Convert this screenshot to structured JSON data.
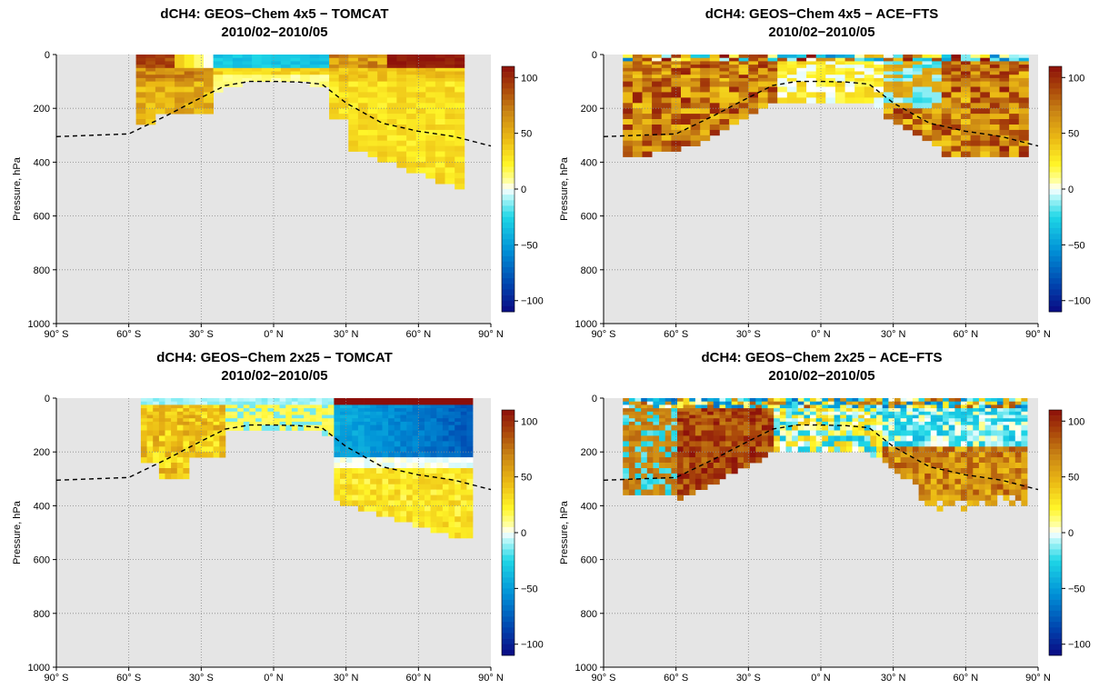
{
  "chart_data": [
    {
      "type": "heatmap",
      "title_line1": "dCH4: GEOS−Chem 4x5 − TOMCAT",
      "title_line2": "2010/02−2010/05",
      "ylabel": "Pressure, hPa",
      "xlim": [
        -90,
        90
      ],
      "ylim": [
        1000,
        0
      ],
      "y_inverted": true,
      "grid": true,
      "xticks": [
        "90° S",
        "60° S",
        "30° S",
        "0° N",
        "30° N",
        "60° N",
        "90° N"
      ],
      "yticks": [
        "0",
        "200",
        "400",
        "600",
        "800",
        "1000"
      ],
      "colorbar_ticks": [
        "100",
        "50",
        "0",
        "−50",
        "−100"
      ],
      "colorbar_range": [
        -110,
        110
      ],
      "lat_step": 4,
      "lat_range": [
        -57,
        77
      ],
      "approx_layers": [
        {
          "p": [
            20,
            55
          ],
          "lat": [
            -57,
            77
          ],
          "values": "upper band: ≈80 near 55°S–40°S and north of 30°N (over 100 on its north edge), −20 to −40 over the equator"
        },
        {
          "p": [
            55,
            250
          ],
          "lat": [
            -57,
            -25
          ],
          "values": "50 to 80"
        },
        {
          "p": [
            120,
            480
          ],
          "lat": [
            25,
            77
          ],
          "values": "15 to 45"
        }
      ],
      "tropopause_line": {
        "lat": [
          -90,
          -60,
          -45,
          -30,
          -20,
          -10,
          0,
          10,
          20,
          30,
          45,
          60,
          75,
          90
        ],
        "pressure": [
          305,
          295,
          230,
          160,
          115,
          100,
          100,
          102,
          110,
          180,
          255,
          285,
          305,
          340
        ]
      }
    },
    {
      "type": "heatmap",
      "title_line1": "dCH4: GEOS−Chem 4x5 − ACE−FTS",
      "title_line2": "2010/02−2010/05",
      "ylabel": "Pressure, hPa",
      "xlim": [
        -90,
        90
      ],
      "ylim": [
        1000,
        0
      ],
      "y_inverted": true,
      "grid": true,
      "xticks": [
        "90° S",
        "60° S",
        "30° S",
        "0° N",
        "30° N",
        "60° N",
        "90° N"
      ],
      "yticks": [
        "0",
        "200",
        "400",
        "600",
        "800",
        "1000"
      ],
      "colorbar_ticks": [
        "100",
        "50",
        "0",
        "−50",
        "−100"
      ],
      "colorbar_range": [
        -110,
        110
      ],
      "lat_step": 4,
      "lat_range": [
        -82,
        86
      ],
      "approx_layers": [
        {
          "p": [
            0,
            25
          ],
          "lat": [
            -82,
            86
          ],
          "values": "mixed −80 to +100 near the top"
        },
        {
          "p": [
            25,
            380
          ],
          "lat": [
            -82,
            -60
          ],
          "values": "40 to 90"
        },
        {
          "p": [
            25,
            200
          ],
          "lat": [
            -60,
            -20
          ],
          "values": "60 to 110"
        },
        {
          "p": [
            25,
            100
          ],
          "lat": [
            -20,
            25
          ],
          "values": "−10 to 60"
        },
        {
          "p": [
            25,
            380
          ],
          "lat": [
            25,
            86
          ],
          "values": "−30 to 110"
        }
      ],
      "tropopause_line": {
        "lat": [
          -90,
          -60,
          -45,
          -30,
          -20,
          -10,
          0,
          10,
          20,
          30,
          45,
          60,
          75,
          90
        ],
        "pressure": [
          305,
          295,
          230,
          160,
          115,
          100,
          100,
          102,
          110,
          180,
          255,
          285,
          305,
          340
        ]
      }
    },
    {
      "type": "heatmap",
      "title_line1": "dCH4: GEOS−Chem 2x25 − TOMCAT",
      "title_line2": "2010/02−2010/05",
      "ylabel": "Pressure, hPa",
      "xlim": [
        -90,
        90
      ],
      "ylim": [
        1000,
        0
      ],
      "y_inverted": true,
      "grid": true,
      "xticks": [
        "90° S",
        "60° S",
        "30° S",
        "0° N",
        "30° N",
        "60° N",
        "90° N"
      ],
      "yticks": [
        "0",
        "200",
        "400",
        "600",
        "800",
        "1000"
      ],
      "colorbar_ticks": [
        "100",
        "50",
        "0",
        "−50",
        "−100"
      ],
      "colorbar_range": [
        -110,
        110
      ],
      "lat_step": 2.5,
      "lat_range": [
        -55,
        83
      ],
      "approx_layers": [
        {
          "p": [
            0,
            30
          ],
          "lat": [
            -55,
            83
          ],
          "values": "−10 near 55°S–20°N, over 100 north of 30°N"
        },
        {
          "p": [
            30,
            300
          ],
          "lat": [
            -55,
            -20
          ],
          "values": "15 to 60"
        },
        {
          "p": [
            60,
            230
          ],
          "lat": [
            25,
            83
          ],
          "values": "−70 to −30"
        },
        {
          "p": [
            240,
            510
          ],
          "lat": [
            27,
            78
          ],
          "values": "15 to 40"
        }
      ],
      "tropopause_line": {
        "lat": [
          -90,
          -60,
          -45,
          -30,
          -20,
          -10,
          0,
          10,
          20,
          30,
          45,
          60,
          75,
          90
        ],
        "pressure": [
          305,
          295,
          230,
          160,
          115,
          100,
          100,
          102,
          110,
          180,
          255,
          285,
          305,
          340
        ]
      }
    },
    {
      "type": "heatmap",
      "title_line1": "dCH4: GEOS−Chem 2x25 − ACE−FTS",
      "title_line2": "2010/02−2010/05",
      "ylabel": "Pressure, hPa",
      "xlim": [
        -90,
        90
      ],
      "ylim": [
        1000,
        0
      ],
      "y_inverted": true,
      "grid": true,
      "xticks": [
        "90° S",
        "60° S",
        "30° S",
        "0° N",
        "30° N",
        "60° N",
        "90° N"
      ],
      "yticks": [
        "0",
        "200",
        "400",
        "600",
        "800",
        "1000"
      ],
      "colorbar_ticks": [
        "100",
        "50",
        "0",
        "−50",
        "−100"
      ],
      "colorbar_range": [
        -110,
        110
      ],
      "lat_step": 2.5,
      "lat_range": [
        -82,
        86
      ],
      "approx_layers": [
        {
          "p": [
            0,
            40
          ],
          "lat": [
            -82,
            86
          ],
          "values": "mixed −80 to +60 near the top"
        },
        {
          "p": [
            40,
            350
          ],
          "lat": [
            -82,
            -60
          ],
          "values": "−40 to 80"
        },
        {
          "p": [
            40,
            130
          ],
          "lat": [
            -60,
            -20
          ],
          "values": "70 to 110"
        },
        {
          "p": [
            40,
            110
          ],
          "lat": [
            -20,
            25
          ],
          "values": "−40 to 40"
        },
        {
          "p": [
            100,
            420
          ],
          "lat": [
            25,
            86
          ],
          "values": "−50 to 90"
        }
      ],
      "tropopause_line": {
        "lat": [
          -90,
          -60,
          -45,
          -30,
          -20,
          -10,
          0,
          10,
          20,
          30,
          45,
          60,
          75,
          90
        ],
        "pressure": [
          305,
          295,
          230,
          160,
          115,
          100,
          100,
          102,
          110,
          180,
          255,
          285,
          305,
          340
        ]
      }
    }
  ]
}
